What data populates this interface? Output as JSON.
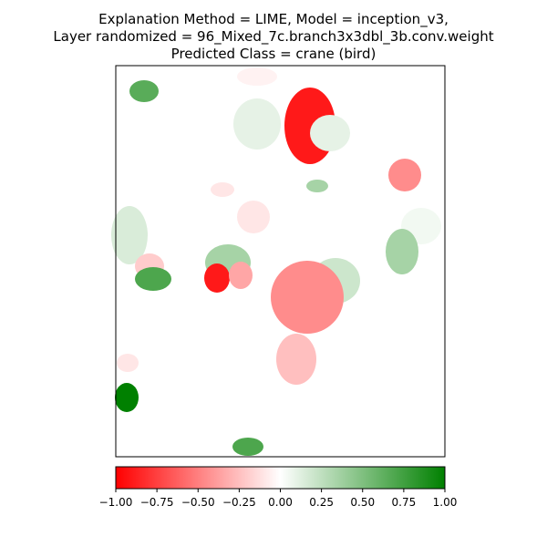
{
  "title_lines": [
    "Explanation Method = LIME, Model = inception_v3,",
    "Layer randomized = 96_Mixed_7c.branch3x3dbl_3b.conv.weight",
    "Predicted Class = crane (bird)"
  ],
  "chart_data": {
    "type": "heatmap",
    "title": "Explanation Method = LIME, Model = inception_v3,\nLayer randomized = 96_Mixed_7c.branch3x3dbl_3b.conv.weight\nPredicted Class = crane (bird)",
    "colormap": {
      "stops": [
        {
          "value": -1.0,
          "color": "#ff0000"
        },
        {
          "value": 0.0,
          "color": "#ffffff"
        },
        {
          "value": 1.0,
          "color": "#008000"
        }
      ]
    },
    "colorbar": {
      "orientation": "horizontal",
      "range": [
        -1.0,
        1.0
      ],
      "ticks": [
        -1.0,
        -0.75,
        -0.5,
        -0.25,
        0.0,
        0.25,
        0.5,
        0.75,
        1.0
      ],
      "tick_labels": [
        "−1.00",
        "−0.75",
        "−0.50",
        "−0.25",
        "0.00",
        "0.25",
        "0.50",
        "0.75",
        "1.00"
      ]
    },
    "superpixel_values": [
      -0.9,
      -0.6,
      -0.45,
      -0.35,
      -0.25,
      -0.2,
      -0.1,
      0.05,
      0.1,
      0.15,
      0.2,
      0.25,
      0.35,
      0.65,
      0.7,
      1.0
    ],
    "axes": {
      "xticks": false,
      "yticks": false
    }
  }
}
